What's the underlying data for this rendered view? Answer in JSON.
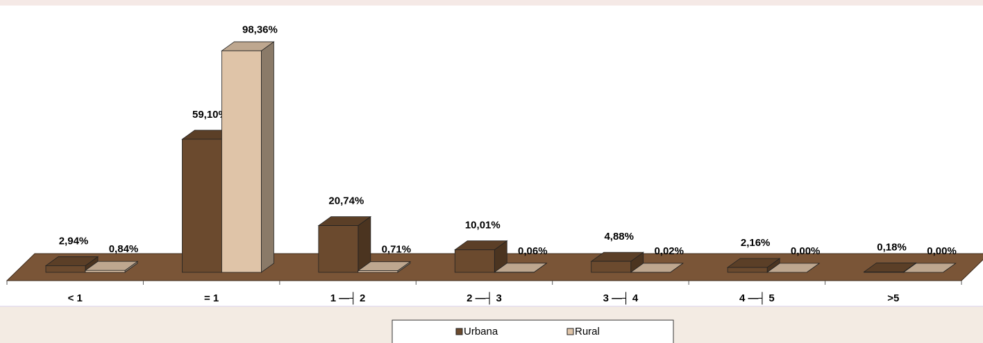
{
  "chart_data": {
    "type": "bar3d",
    "categories": [
      "< 1",
      "= 1",
      "1 —┤ 2",
      "2 —┤ 3",
      "3 —┤ 4",
      "4 —┤ 5",
      ">5"
    ],
    "series": [
      {
        "name": "Urbana",
        "color": "#6b4a2e",
        "values": [
          2.94,
          59.1,
          20.74,
          10.01,
          4.88,
          2.16,
          0.18
        ],
        "value_labels": [
          "2,94%",
          "59,10%",
          "20,74%",
          "10,01%",
          "4,88%",
          "2,16%",
          "0,18%"
        ]
      },
      {
        "name": "Rural",
        "color": "#dfc4a8",
        "values": [
          0.84,
          98.36,
          0.71,
          0.06,
          0.02,
          0.0,
          0.0
        ],
        "value_labels": [
          "0,84%",
          "98,36%",
          "0,71%",
          "0,06%",
          "0,02%",
          "0,00%",
          "0,00%"
        ]
      }
    ]
  }
}
